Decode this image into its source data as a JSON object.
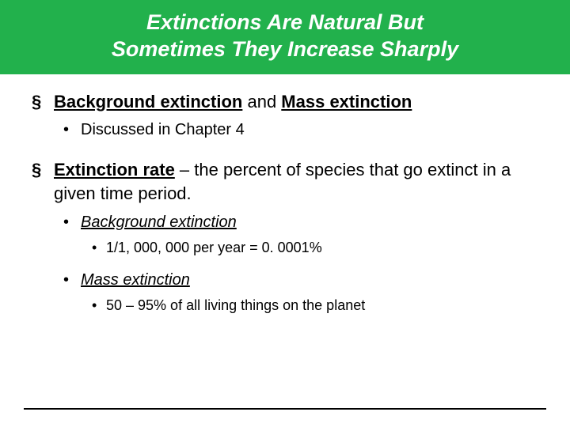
{
  "title_line1": "Extinctions Are Natural But",
  "title_line2": "Sometimes They Increase Sharply",
  "bullet1": {
    "strong1": "Background extinction",
    "mid": " and ",
    "strong2": "Mass extinction",
    "sub1": "Discussed in Chapter 4"
  },
  "bullet2": {
    "strong": "Extinction rate",
    "rest": " – the percent of species that go extinct in a given time period.",
    "sub1_label": "Background extinction",
    "sub1_detail": "1/1, 000, 000 per year = 0. 0001%",
    "sub2_label": "Mass extinction",
    "sub2_detail": "50 – 95% of all living things on the planet"
  },
  "colors": {
    "title_bg": "#22b14c",
    "title_text": "#ffffff",
    "body_text": "#000000",
    "rule": "#000000"
  }
}
